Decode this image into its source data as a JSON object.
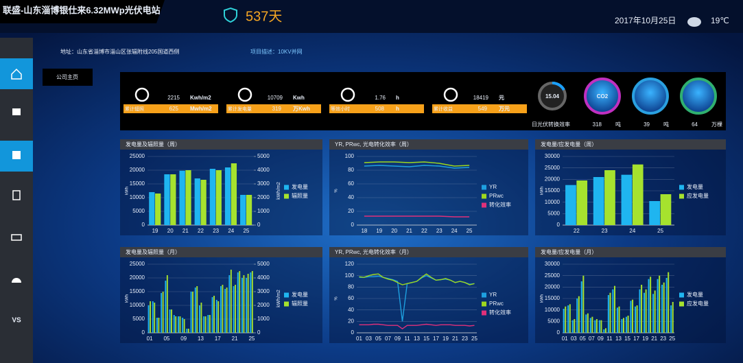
{
  "header": {
    "title": "联盛-山东淄博银仕来6.32MWp光伏电站",
    "days": "537天",
    "date": "2017年10月25日",
    "temperature": "19℃"
  },
  "info": {
    "address": "地址：山东省淄博市淄山区张辐附线205国道西侧",
    "project": "项目描述：10KV并网"
  },
  "sidebar": {
    "label": "VS"
  },
  "tab": "公司主页",
  "kpis": [
    {
      "value": 2215,
      "unit": "Kwh/m2",
      "label": "累计辐照",
      "total": 625,
      "total_unit": "Mwh/m2"
    },
    {
      "value": 10709,
      "unit": "Kwh",
      "label": "累计发电量",
      "total": 319,
      "total_unit": "万Kwh"
    },
    {
      "value": 1.76,
      "unit": "h",
      "label": "等效小时",
      "total": 508,
      "total_unit": "h"
    },
    {
      "value": 18419,
      "unit": "元",
      "label": "累计收益",
      "total": 549,
      "total_unit": "万元"
    }
  ],
  "gauge": {
    "value": 15.04,
    "label": "日光伏转换效率"
  },
  "savings": [
    {
      "icon_text": "CO2",
      "value": 318,
      "unit": "吨"
    },
    {
      "value": 39,
      "unit": "吨"
    },
    {
      "value": 64,
      "unit": "万棵"
    }
  ],
  "chart_data": [
    {
      "type": "bar",
      "title": "发电量及辐照量（周）",
      "y_label": "kWh",
      "y2_label": "kWh/m2",
      "categories": [
        "19",
        "20",
        "21",
        "22",
        "23",
        "24",
        "25"
      ],
      "series": [
        {
          "name": "发电量",
          "color": "#1fb5f0",
          "values": [
            12000,
            18500,
            19800,
            17000,
            20500,
            21000,
            11000
          ]
        },
        {
          "name": "辐照量",
          "color": "#a6e22e",
          "axis": "y2",
          "values": [
            2300,
            3700,
            4000,
            3300,
            4000,
            4500,
            2200
          ]
        }
      ],
      "ylim": [
        0,
        25000
      ],
      "yticks": [
        0,
        5000,
        10000,
        15000,
        20000,
        25000
      ],
      "y2lim": [
        0,
        5000
      ],
      "y2ticks": [
        0,
        1000,
        2000,
        3000,
        4000,
        5000
      ],
      "legend": "right",
      "grid": true
    },
    {
      "type": "line",
      "title": "YR, PRwc, 光电转化效率（周）",
      "y_label": "%",
      "categories": [
        "18",
        "19",
        "20",
        "21",
        "22",
        "23",
        "24",
        "25"
      ],
      "series": [
        {
          "name": "YR",
          "color": "#1ea0e0",
          "values": [
            86,
            87,
            86,
            85,
            87,
            86,
            83,
            84
          ]
        },
        {
          "name": "PRwc",
          "color": "#9ed81e",
          "values": [
            91,
            92,
            92,
            91,
            92,
            90,
            86,
            87
          ]
        },
        {
          "name": "转化效率",
          "color": "#e0307a",
          "values": [
            13,
            13,
            13,
            13,
            13,
            13,
            12,
            12
          ]
        }
      ],
      "ylim": [
        0,
        100
      ],
      "yticks": [
        0,
        20,
        40,
        60,
        80,
        100
      ],
      "legend": "right",
      "grid": true
    },
    {
      "type": "bar",
      "title": "发电量/应发电量（周）",
      "y_label": "kWh",
      "categories": [
        "22",
        "23",
        "24",
        "25"
      ],
      "series": [
        {
          "name": "发电量",
          "color": "#1fb5f0",
          "values": [
            17500,
            21000,
            22000,
            10500
          ]
        },
        {
          "name": "应发电量",
          "color": "#a6e22e",
          "values": [
            19500,
            24000,
            26500,
            13500
          ]
        }
      ],
      "ylim": [
        0,
        30000
      ],
      "yticks": [
        0,
        5000,
        10000,
        15000,
        20000,
        25000,
        30000
      ],
      "legend": "right",
      "grid": true
    },
    {
      "type": "bar",
      "title": "发电量及辐照量（月）",
      "y_label": "kWh",
      "y2_label": "kWh/m2",
      "categories": [
        "01",
        null,
        null,
        null,
        "05",
        null,
        null,
        null,
        "09",
        null,
        null,
        null,
        "13",
        null,
        null,
        null,
        "17",
        null,
        null,
        null,
        "21",
        null,
        null,
        null,
        "25"
      ],
      "series": [
        {
          "name": "发电量",
          "color": "#1fb5f0",
          "values": [
            10000,
            11500,
            5500,
            14500,
            19000,
            8500,
            6500,
            6000,
            5500,
            1500,
            15000,
            16500,
            10000,
            6000,
            6500,
            13000,
            12000,
            17000,
            16000,
            21000,
            17000,
            22000,
            20000,
            20000,
            22000
          ]
        },
        {
          "name": "辐照量",
          "color": "#a6e22e",
          "axis": "y2",
          "values": [
            2300,
            2200,
            1100,
            3000,
            4200,
            1700,
            1200,
            1200,
            1000,
            300,
            3000,
            3400,
            2200,
            1200,
            1300,
            2700,
            2300,
            3500,
            3300,
            4600,
            3500,
            4500,
            4200,
            4300,
            4500
          ]
        }
      ],
      "ylim": [
        0,
        25000
      ],
      "yticks": [
        0,
        5000,
        10000,
        15000,
        20000,
        25000
      ],
      "y2lim": [
        0,
        5000
      ],
      "y2ticks": [
        0,
        1000,
        2000,
        3000,
        4000,
        5000
      ],
      "legend": "right",
      "grid": true
    },
    {
      "type": "line",
      "title": "YR, PRwc, 光电转化效率（月）",
      "y_label": "%",
      "categories": [
        "01",
        null,
        "03",
        null,
        "05",
        null,
        "07",
        null,
        "09",
        null,
        "11",
        null,
        "13",
        null,
        "15",
        null,
        "17",
        null,
        "19",
        null,
        "21",
        null,
        "23",
        null,
        "25"
      ],
      "series": [
        {
          "name": "YR",
          "color": "#1ea0e0",
          "values": [
            97,
            97,
            98,
            98,
            99,
            97,
            95,
            93,
            90,
            20,
            86,
            88,
            90,
            96,
            100,
            96,
            92,
            93,
            94,
            92,
            88,
            90,
            88,
            85,
            86
          ]
        },
        {
          "name": "PRwc",
          "color": "#9ed81e",
          "values": [
            98,
            97,
            100,
            102,
            103,
            97,
            94,
            92,
            88,
            84,
            86,
            88,
            90,
            97,
            103,
            97,
            92,
            93,
            95,
            92,
            88,
            90,
            88,
            84,
            86
          ]
        },
        {
          "name": "转化效率",
          "color": "#e0307a",
          "values": [
            14,
            14,
            14,
            15,
            15,
            14,
            13,
            13,
            13,
            7,
            13,
            13,
            13,
            14,
            15,
            14,
            13,
            14,
            14,
            14,
            13,
            13,
            13,
            12,
            13
          ]
        }
      ],
      "ylim": [
        0,
        120
      ],
      "yticks": [
        0,
        20,
        40,
        60,
        80,
        100,
        120
      ],
      "legend": "right",
      "grid": true
    },
    {
      "type": "bar",
      "title": "发电量/应发电量（月）",
      "y_label": "kWh",
      "categories": [
        "01",
        null,
        "03",
        null,
        "05",
        null,
        "07",
        null,
        "09",
        null,
        "11",
        null,
        "13",
        null,
        "15",
        null,
        "17",
        null,
        "19",
        null,
        "21",
        null,
        "23",
        null,
        "25"
      ],
      "series": [
        {
          "name": "发电量",
          "color": "#1fb5f0",
          "values": [
            10500,
            12000,
            5500,
            15000,
            22500,
            8000,
            6500,
            5500,
            5500,
            1500,
            16500,
            19000,
            11000,
            6000,
            7000,
            14000,
            11500,
            19000,
            17500,
            23500,
            17000,
            23500,
            21000,
            24000,
            12000
          ]
        },
        {
          "name": "应发电量",
          "color": "#a6e22e",
          "values": [
            11500,
            12500,
            6000,
            16000,
            25000,
            8500,
            7000,
            6000,
            5500,
            2000,
            17500,
            20500,
            11500,
            6500,
            7500,
            14500,
            12000,
            21000,
            19000,
            24500,
            18500,
            25000,
            22000,
            26500,
            13500
          ]
        }
      ],
      "ylim": [
        0,
        30000
      ],
      "yticks": [
        0,
        5000,
        10000,
        15000,
        20000,
        25000,
        30000
      ],
      "legend": "right",
      "grid": true
    }
  ]
}
